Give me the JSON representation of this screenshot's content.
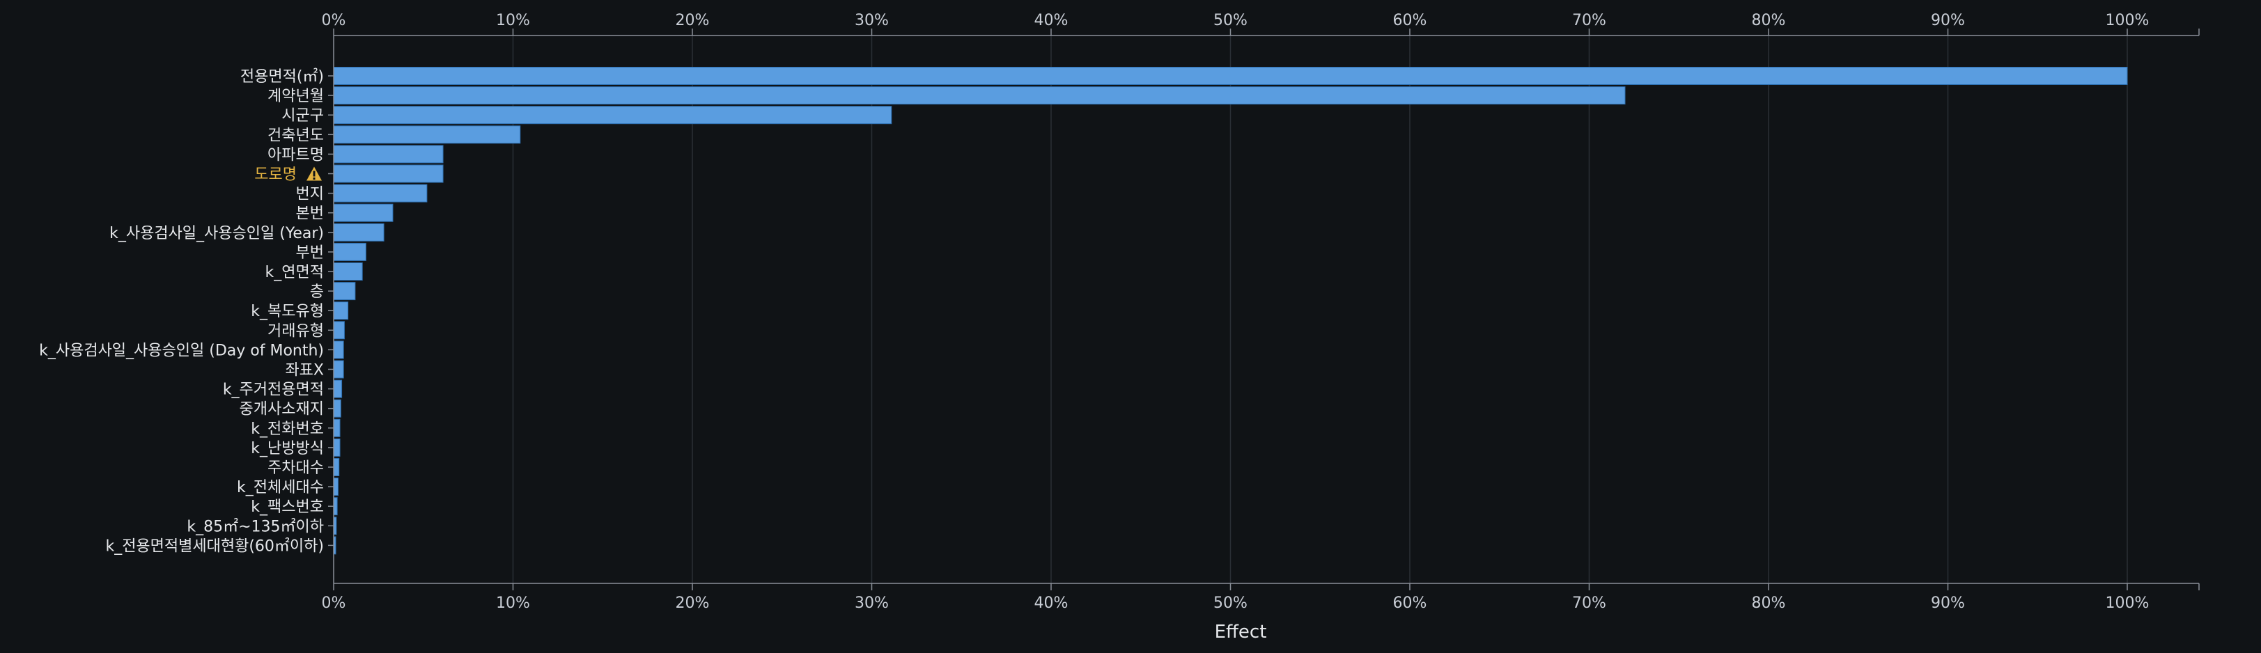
{
  "chart_data": {
    "type": "bar",
    "orientation": "horizontal",
    "categories": [
      "전용면적(㎡)",
      "계약년월",
      "시군구",
      "건축년도",
      "아파트명",
      "도로명",
      "번지",
      "본번",
      "k_사용검사일_사용승인일 (Year)",
      "부번",
      "k_연면적",
      "층",
      "k_복도유형",
      "거래유형",
      "k_사용검사일_사용승인일 (Day of Month)",
      "좌표X",
      "k_주거전용면적",
      "중개사소재지",
      "k_전화번호",
      "k_난방방식",
      "주차대수",
      "k_전체세대수",
      "k_팩스번호",
      "k_85㎡~135㎡이하",
      "k_전용면적별세대현황(60㎡이하)"
    ],
    "values": [
      100,
      72.0,
      31.1,
      10.4,
      6.1,
      6.1,
      5.2,
      3.3,
      2.8,
      1.8,
      1.6,
      1.2,
      0.8,
      0.6,
      0.55,
      0.55,
      0.45,
      0.4,
      0.35,
      0.35,
      0.3,
      0.25,
      0.2,
      0.15,
      0.1
    ],
    "warning_category": "도로명",
    "warning_icon": "warning-triangle-icon",
    "xlabel": "Effect",
    "ylabel": "",
    "xlim": [
      0,
      100
    ],
    "x_ticks": [
      0,
      10,
      20,
      30,
      40,
      50,
      60,
      70,
      80,
      90,
      100
    ],
    "x_tick_labels": [
      "0%",
      "10%",
      "20%",
      "30%",
      "40%",
      "50%",
      "60%",
      "70%",
      "80%",
      "90%",
      "100%"
    ],
    "grid": true,
    "axes": "top-and-bottom",
    "colors": {
      "background": "#101316",
      "bar": "#5a9de0",
      "bar_stroke": "#2d6fb0",
      "grid": "#2a2f35",
      "axis": "#8a9099",
      "tick_text": "#c9ced6",
      "label_text": "#e6e8eb",
      "warning": "#e3b341",
      "warning_text": "#101316"
    }
  }
}
